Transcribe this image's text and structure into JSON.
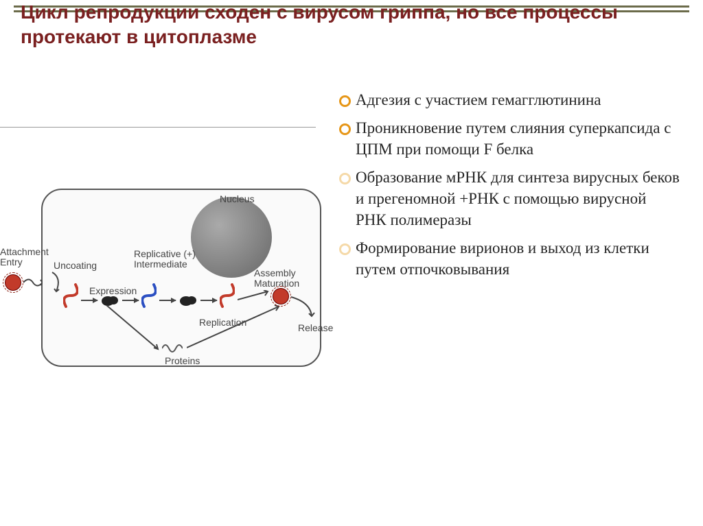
{
  "title": "Цикл репродукции сходен с вирусом гриппа, но все процессы протекают в цитоплазме",
  "bullets": [
    {
      "text": "Адгезия с участием гемагглютинина",
      "faded": false
    },
    {
      "text": "Проникновение путем слияния суперкапсида с ЦПМ при помощи F белка",
      "faded": false
    },
    {
      "text": "Образование мРНК для синтеза вирусных беков и прегеномной +РНК с помощью вирусной РНК полимеразы",
      "faded": true
    },
    {
      "text": "Формирование вирионов и выход из клетки путем отпочковывания",
      "faded": true
    }
  ],
  "diagram": {
    "labels": {
      "attachment": "Attachment\nEntry",
      "uncoating": "Uncoating",
      "expression": "Expression",
      "replicative": "Replicative (+)\nIntermediate",
      "nucleus": "Nucleus",
      "assembly": "Assembly\nMaturation",
      "replication": "Replication",
      "release": "Release",
      "proteins": "Proteins"
    },
    "colors": {
      "cell_border": "#555555",
      "cell_fill": "#fafafa",
      "nucleus_fill": "#777777",
      "virion": "#c23a2a",
      "rna_neg": "#c23a2a",
      "rna_pos": "#2b4fc2",
      "arrow": "#444444"
    }
  },
  "style": {
    "title_color": "#7a2020",
    "title_fontsize": 28,
    "bullet_border": "#e69617",
    "border_bar": "#6b6b4a"
  }
}
